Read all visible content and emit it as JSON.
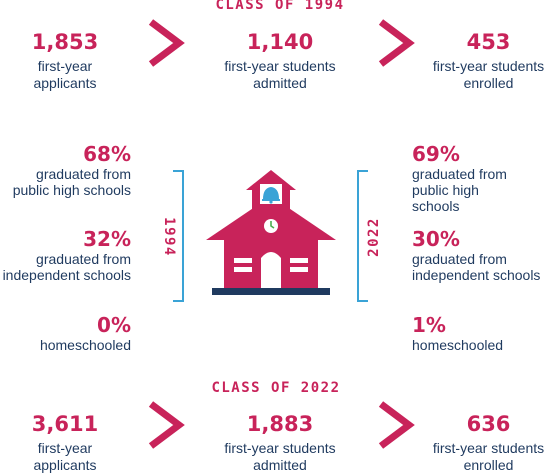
{
  "class_1994": {
    "title": "CLASS OF 1994",
    "applicants_value": "1,853",
    "applicants_label": "first-year applicants",
    "admitted_value": "1,140",
    "admitted_label": "first-year students admitted",
    "enrolled_value": "453",
    "enrolled_label": "first-year students enrolled"
  },
  "class_2022": {
    "title": "CLASS OF 2022",
    "applicants_value": "3,611",
    "applicants_label": "first-year applicants",
    "admitted_value": "1,883",
    "admitted_label": "first-year students admitted",
    "enrolled_value": "636",
    "enrolled_label": "first-year students enrolled"
  },
  "left_panel": {
    "year": "1994",
    "public_pct": "68%",
    "public_label": "graduated from public high schools",
    "independent_pct": "32%",
    "independent_label": "graduated from independent schools",
    "home_pct": "0%",
    "home_label": "homeschooled"
  },
  "right_panel": {
    "year": "2022",
    "public_pct": "69%",
    "public_label": "graduated from public high schools",
    "independent_pct": "30%",
    "independent_label": "graduated from independent schools",
    "home_pct": "1%",
    "home_label": "homeschooled"
  },
  "colors": {
    "accent": "#c8235a",
    "text": "#1f3a5f",
    "bracket": "#3aa3d6",
    "bell": "#3aa3d6"
  },
  "icons": [
    "chevron-right-icon",
    "schoolhouse-icon",
    "bell-icon",
    "clock-icon"
  ]
}
